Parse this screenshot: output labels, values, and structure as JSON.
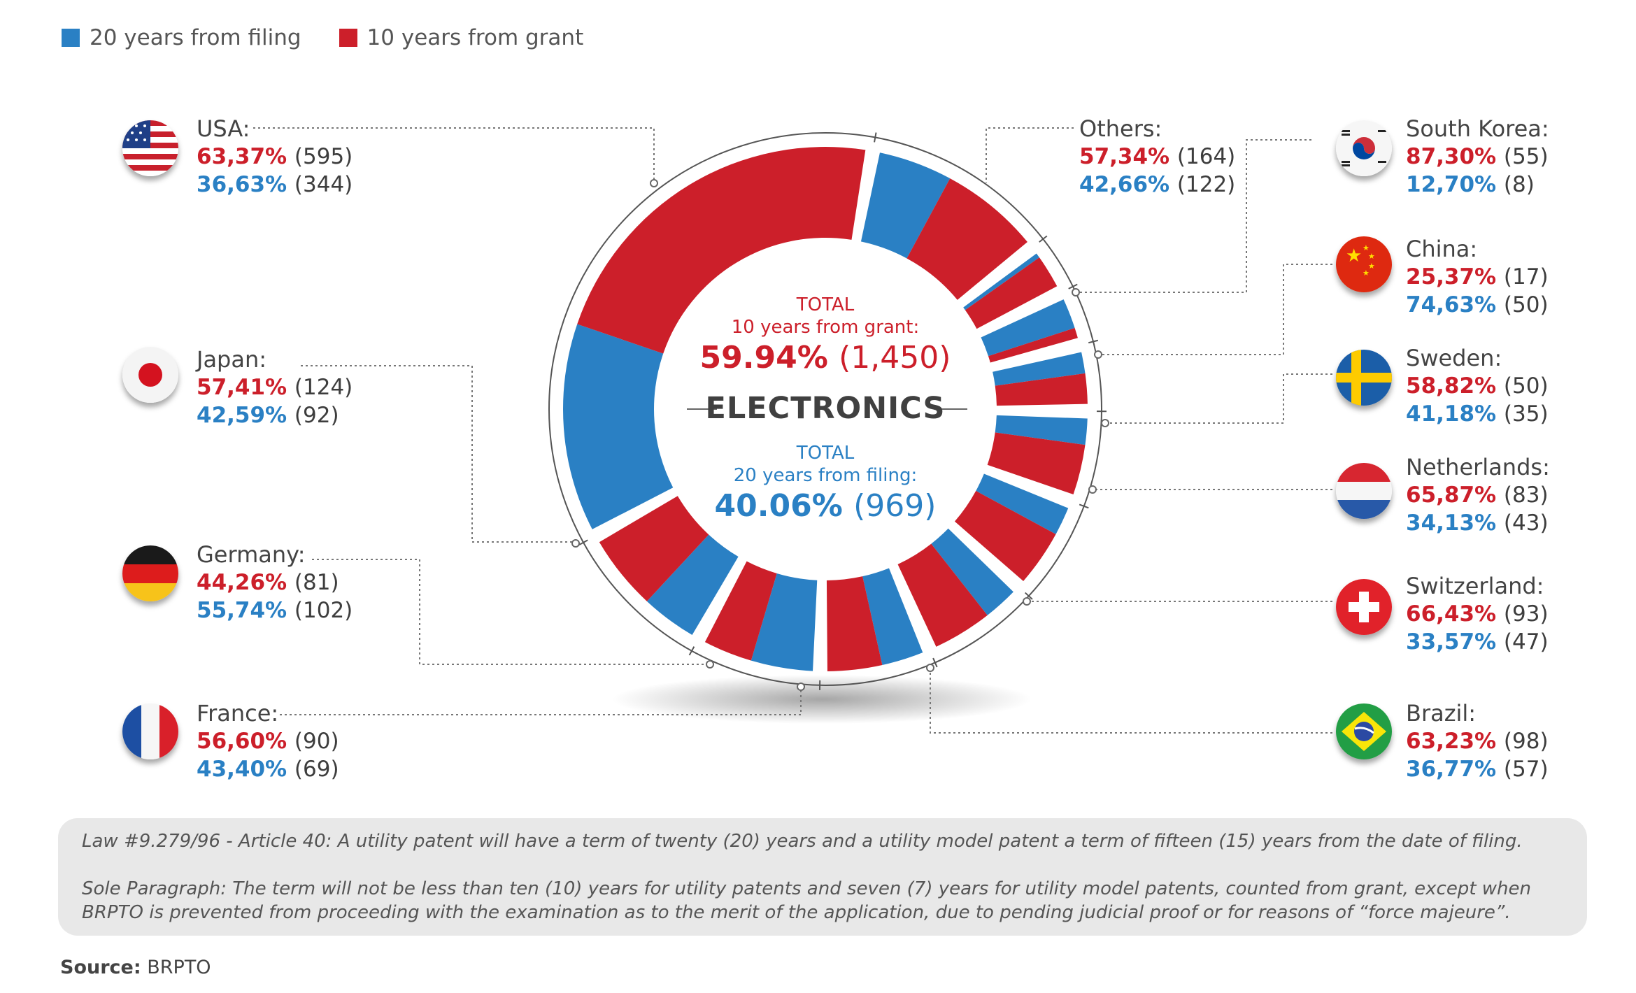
{
  "legend": {
    "filing": {
      "label": "20 years from filing",
      "color": "#2a80c4"
    },
    "grant": {
      "label": "10 years from grant",
      "color": "#cc1f2a"
    }
  },
  "center": {
    "grant_label": "TOTAL",
    "grant_label2": "10 years from grant:",
    "grant_pct": "59.94%",
    "grant_count": "(1,450)",
    "title": "ELECTRONICS",
    "filing_label": "TOTAL",
    "filing_label2": "20 years from filing:",
    "filing_pct": "40.06%",
    "filing_count": "(969)"
  },
  "countries": {
    "usa": {
      "name": "USA:",
      "grant_pct": "63,37%",
      "grant_n": "(595)",
      "filing_pct": "36,63%",
      "filing_n": "(344)"
    },
    "japan": {
      "name": "Japan:",
      "grant_pct": "57,41%",
      "grant_n": "(124)",
      "filing_pct": "42,59%",
      "filing_n": "(92)"
    },
    "germany": {
      "name": "Germany:",
      "grant_pct": "44,26%",
      "grant_n": "(81)",
      "filing_pct": "55,74%",
      "filing_n": "(102)"
    },
    "france": {
      "name": "France:",
      "grant_pct": "56,60%",
      "grant_n": "(90)",
      "filing_pct": "43,40%",
      "filing_n": "(69)"
    },
    "others": {
      "name": "Others:",
      "grant_pct": "57,34%",
      "grant_n": "(164)",
      "filing_pct": "42,66%",
      "filing_n": "(122)"
    },
    "south_korea": {
      "name": "South Korea:",
      "grant_pct": "87,30%",
      "grant_n": "(55)",
      "filing_pct": "12,70%",
      "filing_n": "(8)"
    },
    "china": {
      "name": "China:",
      "grant_pct": "25,37%",
      "grant_n": "(17)",
      "filing_pct": "74,63%",
      "filing_n": "(50)"
    },
    "sweden": {
      "name": "Sweden:",
      "grant_pct": "58,82%",
      "grant_n": "(50)",
      "filing_pct": "41,18%",
      "filing_n": "(35)"
    },
    "netherlands": {
      "name": "Netherlands:",
      "grant_pct": "65,87%",
      "grant_n": "(83)",
      "filing_pct": "34,13%",
      "filing_n": "(43)"
    },
    "switzerland": {
      "name": "Switzerland:",
      "grant_pct": "66,43%",
      "grant_n": "(93)",
      "filing_pct": "33,57%",
      "filing_n": "(47)"
    },
    "brazil": {
      "name": "Brazil:",
      "grant_pct": "63,23%",
      "grant_n": "(98)",
      "filing_pct": "36,77%",
      "filing_n": "(57)"
    }
  },
  "note": {
    "line1": "Law #9.279/96 - Article 40: A utility patent will have a term of twenty (20) years and a utility model patent a term of fifteen (15) years from the date of filing.",
    "line2": "Sole Paragraph: The term will not be less than ten (10) years for utility patents and seven (7) years for utility model patents, counted from grant, except when BRPTO is prevented from proceeding with the examination as to the merit of the application, due to pending judicial proof or for reasons of “force majeure”."
  },
  "source": {
    "label": "Source:",
    "value": "BRPTO"
  },
  "chart_data": {
    "type": "pie",
    "title": "ELECTRONICS",
    "subtype": "donut, stacked by country",
    "series_names": [
      "10 years from grant",
      "20 years from filing"
    ],
    "segments": [
      {
        "country": "Others",
        "grant": 164,
        "filing": 122
      },
      {
        "country": "South Korea",
        "grant": 55,
        "filing": 8
      },
      {
        "country": "China",
        "grant": 17,
        "filing": 50
      },
      {
        "country": "Sweden",
        "grant": 50,
        "filing": 35
      },
      {
        "country": "Netherlands",
        "grant": 83,
        "filing": 43
      },
      {
        "country": "Switzerland",
        "grant": 93,
        "filing": 47
      },
      {
        "country": "Brazil",
        "grant": 98,
        "filing": 57
      },
      {
        "country": "France",
        "grant": 90,
        "filing": 69
      },
      {
        "country": "Germany",
        "grant": 81,
        "filing": 102
      },
      {
        "country": "Japan",
        "grant": 124,
        "filing": 92
      },
      {
        "country": "USA",
        "grant": 595,
        "filing": 344
      }
    ],
    "totals": {
      "grant": 1450,
      "filing": 969
    }
  }
}
